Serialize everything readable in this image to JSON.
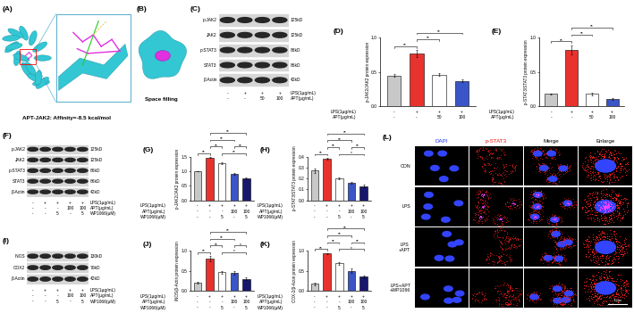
{
  "chart_data": [
    {
      "type": "bar",
      "title": "(D)",
      "ylabel": "p-JAK2/JAK2 protein expression",
      "values": [
        0.45,
        0.77,
        0.46,
        0.37
      ],
      "errors": [
        0.02,
        0.05,
        0.02,
        0.02
      ],
      "colors": [
        "#c8c8c8",
        "#e8322e",
        "#ffffff",
        "#3a55c8"
      ],
      "ylim": [
        0,
        1.0
      ],
      "yticks": [
        {
          "value": 0,
          "label": "0.0"
        },
        0.5,
        {
          "value": 1,
          "label": "1.0"
        }
      ],
      "condition_rows": [
        {
          "label": "LPS(1μg/mL)",
          "values": [
            "-",
            "+",
            "+",
            "+"
          ]
        },
        {
          "label": "APT(μg/mL)",
          "values": [
            "-",
            "-",
            "50",
            "100"
          ]
        }
      ],
      "significance": [
        {
          "pair": [
            0,
            1
          ],
          "label": "**"
        },
        {
          "pair": [
            1,
            2
          ],
          "label": "**"
        },
        {
          "pair": [
            1,
            3
          ],
          "label": "**"
        }
      ]
    },
    {
      "type": "bar",
      "title": "(E)",
      "ylabel": "p-STAT3/STAT3 protein expression",
      "values": [
        0.18,
        0.82,
        0.18,
        0.11
      ],
      "errors": [
        0.01,
        0.07,
        0.02,
        0.01
      ],
      "colors": [
        "#c8c8c8",
        "#e8322e",
        "#ffffff",
        "#3a55c8"
      ],
      "ylim": [
        0,
        1.0
      ],
      "yticks": [
        {
          "value": 0,
          "label": "0.0"
        },
        0.5,
        {
          "value": 1,
          "label": "1.0"
        }
      ],
      "condition_rows": [
        {
          "label": "LPS(1μg/mL)",
          "values": [
            "-",
            "+",
            "+",
            "+"
          ]
        },
        {
          "label": "APT(μg/mL)",
          "values": [
            "-",
            "-",
            "50",
            "100"
          ]
        }
      ],
      "significance": [
        {
          "pair": [
            0,
            1
          ],
          "label": "**"
        },
        {
          "pair": [
            1,
            2
          ],
          "label": "**"
        },
        {
          "pair": [
            1,
            3
          ],
          "label": "**"
        }
      ]
    },
    {
      "type": "bar",
      "title": "(G)",
      "ylabel": "p-JAK2/JAK2 protein expression",
      "values": [
        1.0,
        1.46,
        1.27,
        0.9,
        0.75
      ],
      "errors": [
        0.01,
        0.02,
        0.02,
        0.03,
        0.03
      ],
      "colors": [
        "#c8c8c8",
        "#e8322e",
        "#ffffff",
        "#3a55c8",
        "#17176e"
      ],
      "ylim": [
        0,
        1.5
      ],
      "yticks": [
        {
          "value": 0,
          "label": "0.0"
        },
        0.5,
        {
          "value": 1,
          "label": "1.0"
        },
        1.5
      ],
      "condition_rows": [
        {
          "label": "LPS(1μg/mL)",
          "values": [
            "-",
            "+",
            "+",
            "+",
            "+"
          ]
        },
        {
          "label": "APT(μg/mL)",
          "values": [
            "-",
            "-",
            "-",
            "100",
            "100"
          ]
        },
        {
          "label": "WP1066(μM)",
          "values": [
            "-",
            "-",
            "5",
            "-",
            "5"
          ]
        }
      ],
      "significance": [
        {
          "pair": [
            0,
            1
          ],
          "label": "**"
        },
        {
          "pair": [
            1,
            2
          ],
          "label": "**"
        },
        {
          "pair": [
            1,
            3
          ],
          "label": "**"
        },
        {
          "pair": [
            1,
            4
          ],
          "label": "**"
        },
        {
          "pair": [
            2,
            4
          ],
          "label": "**"
        },
        {
          "pair": [
            3,
            4
          ],
          "label": "**"
        }
      ]
    },
    {
      "type": "bar",
      "title": "(H)",
      "ylabel": "p-STAT3/STAT3 protein expression",
      "values": [
        0.27,
        0.38,
        0.2,
        0.16,
        0.13
      ],
      "errors": [
        0.02,
        0.01,
        0.01,
        0.01,
        0.01
      ],
      "colors": [
        "#c8c8c8",
        "#e8322e",
        "#ffffff",
        "#3a55c8",
        "#17176e"
      ],
      "ylim": [
        0,
        0.4
      ],
      "yticks": [
        {
          "value": 0,
          "label": "0.0"
        },
        0.1,
        0.2,
        0.3,
        0.4
      ],
      "condition_rows": [
        {
          "label": "LPS(1μg/mL)",
          "values": [
            "-",
            "+",
            "+",
            "+",
            "+"
          ]
        },
        {
          "label": "APT(μg/mL)",
          "values": [
            "-",
            "-",
            "-",
            "100",
            "100"
          ]
        },
        {
          "label": "WP1066(μM)",
          "values": [
            "-",
            "-",
            "5",
            "-",
            "5"
          ]
        }
      ],
      "significance": [
        {
          "pair": [
            0,
            1
          ],
          "label": "**"
        },
        {
          "pair": [
            1,
            2
          ],
          "label": "**"
        },
        {
          "pair": [
            1,
            3
          ],
          "label": "**"
        },
        {
          "pair": [
            1,
            4
          ],
          "label": "**"
        },
        {
          "pair": [
            2,
            4
          ],
          "label": "*"
        },
        {
          "pair": [
            3,
            4
          ],
          "label": "**"
        }
      ]
    },
    {
      "type": "bar",
      "title": "(J)",
      "ylabel": "iNOS/β-Actin protein expression",
      "values": [
        0.2,
        0.8,
        0.46,
        0.45,
        0.3
      ],
      "errors": [
        0.02,
        0.06,
        0.03,
        0.04,
        0.03
      ],
      "colors": [
        "#c8c8c8",
        "#e8322e",
        "#ffffff",
        "#3a55c8",
        "#17176e"
      ],
      "ylim": [
        0,
        1.0
      ],
      "yticks": [
        {
          "value": 0,
          "label": "0.0"
        },
        0.5,
        {
          "value": 1,
          "label": "1.0"
        }
      ],
      "condition_rows": [
        {
          "label": "LPS(1μg/mL)",
          "values": [
            "-",
            "+",
            "+",
            "+",
            "+"
          ]
        },
        {
          "label": "APT(μg/mL)",
          "values": [
            "-",
            "-",
            "-",
            "100",
            "100"
          ]
        },
        {
          "label": "WP1066(μM)",
          "values": [
            "-",
            "-",
            "5",
            "-",
            "5"
          ]
        }
      ],
      "significance": [
        {
          "pair": [
            0,
            1
          ],
          "label": "**"
        },
        {
          "pair": [
            1,
            2
          ],
          "label": "**"
        },
        {
          "pair": [
            1,
            3
          ],
          "label": "**"
        },
        {
          "pair": [
            1,
            4
          ],
          "label": "**"
        },
        {
          "pair": [
            2,
            4
          ],
          "label": "*"
        },
        {
          "pair": [
            3,
            4
          ],
          "label": "*"
        }
      ]
    },
    {
      "type": "bar",
      "title": "(K)",
      "ylabel": "COX-2/β-Actin protein expression",
      "values": [
        0.18,
        0.92,
        0.68,
        0.5,
        0.35
      ],
      "errors": [
        0.03,
        0.02,
        0.04,
        0.05,
        0.03
      ],
      "colors": [
        "#c8c8c8",
        "#e8322e",
        "#ffffff",
        "#3a55c8",
        "#17176e"
      ],
      "ylim": [
        0,
        1.0
      ],
      "yticks": [
        {
          "value": 0,
          "label": "0.0"
        },
        0.5,
        {
          "value": 1,
          "label": "1.0"
        }
      ],
      "condition_rows": [
        {
          "label": "LPS(1μg/mL)",
          "values": [
            "-",
            "+",
            "+",
            "+",
            "+"
          ]
        },
        {
          "label": "APT(μg/mL)",
          "values": [
            "-",
            "-",
            "-",
            "100",
            "100"
          ]
        },
        {
          "label": "WP1066(μM)",
          "values": [
            "-",
            "-",
            "5",
            "-",
            "5"
          ]
        }
      ],
      "significance": [
        {
          "pair": [
            0,
            1
          ],
          "label": "**"
        },
        {
          "pair": [
            1,
            2
          ],
          "label": "**"
        },
        {
          "pair": [
            1,
            3
          ],
          "label": "**"
        },
        {
          "pair": [
            1,
            4
          ],
          "label": "**"
        },
        {
          "pair": [
            2,
            4
          ],
          "label": "*"
        },
        {
          "pair": [
            3,
            4
          ],
          "label": "**"
        }
      ]
    }
  ],
  "docking": {
    "title": "(A)",
    "caption": "APT-JAK2: Affinity=-8.5 kcal/mol"
  },
  "surface": {
    "title": "(B)",
    "caption": "Space filling"
  },
  "blots": [
    {
      "title": "(C)",
      "bands": [
        {
          "name": "p-JAK2",
          "size": "125kD"
        },
        {
          "name": "JAK2",
          "size": "125kD"
        },
        {
          "name": "p-STAT3",
          "size": "86kD"
        },
        {
          "name": "STAT3",
          "size": "86kD"
        },
        {
          "name": "β-Actin",
          "size": "42kD"
        }
      ],
      "condition_rows": [
        {
          "label": "LPS(1μg/mL)",
          "values": [
            "-",
            "+",
            "+",
            "+"
          ]
        },
        {
          "label": "APT(μg/mL)",
          "values": [
            "-",
            "-",
            "50",
            "100"
          ]
        }
      ]
    },
    {
      "title": "(F)",
      "bands": [
        {
          "name": "p-JAK2",
          "size": "125kD"
        },
        {
          "name": "JAK2",
          "size": "125kD"
        },
        {
          "name": "p-STAT3",
          "size": "86kD"
        },
        {
          "name": "STAT3",
          "size": "86kD"
        },
        {
          "name": "β-Actin",
          "size": "42kD"
        }
      ],
      "condition_rows": [
        {
          "label": "LPS(1μg/mL)",
          "values": [
            "-",
            "+",
            "+",
            "+",
            "+"
          ]
        },
        {
          "label": "APT(μg/mL)",
          "values": [
            "-",
            "-",
            "-",
            "100",
            "100"
          ]
        },
        {
          "label": "WP1066(μM)",
          "values": [
            "-",
            "-",
            "5",
            "-",
            "5"
          ]
        }
      ]
    },
    {
      "title": "(I)",
      "bands": [
        {
          "name": "iNOS",
          "size": "130kD"
        },
        {
          "name": "COX2",
          "size": "70kD"
        },
        {
          "name": "β-Actin",
          "size": "42kD"
        }
      ],
      "condition_rows": [
        {
          "label": "LPS(1μg/mL)",
          "values": [
            "-",
            "+",
            "+",
            "+",
            "+"
          ]
        },
        {
          "label": "APT(μg/mL)",
          "values": [
            "-",
            "-",
            "-",
            "100",
            "100"
          ]
        },
        {
          "label": "WP1066(μM)",
          "values": [
            "-",
            "-",
            "5",
            "-",
            "5"
          ]
        }
      ]
    }
  ],
  "microscopy": {
    "title": "(L)",
    "columns": [
      "DAPI",
      "p-STAT3",
      "Merge",
      "Enlarge"
    ],
    "rows": [
      "CON",
      "LPS",
      "LPS\n+APT",
      "LPS+APT\n+WP1066"
    ],
    "scale_bar": "30μm"
  }
}
